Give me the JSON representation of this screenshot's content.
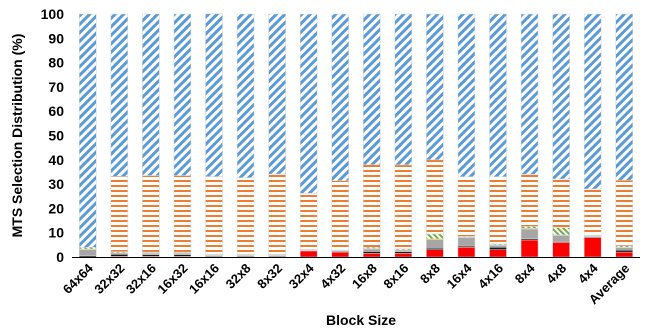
{
  "chart_data": {
    "type": "bar",
    "stacked": true,
    "xlabel": "Block Size",
    "ylabel": "MTS Selection Distribution (%)",
    "ylim": [
      0,
      100
    ],
    "yticks": [
      0,
      10,
      20,
      30,
      40,
      50,
      60,
      70,
      80,
      90,
      100
    ],
    "grid": false,
    "legend": "none",
    "categories": [
      "64x64",
      "32x32",
      "32x16",
      "16x32",
      "16x16",
      "32x8",
      "8x32",
      "32x4",
      "4x32",
      "16x8",
      "8x16",
      "8x8",
      "16x4",
      "4x16",
      "8x4",
      "4x8",
      "4x4",
      "Average"
    ],
    "series": [
      {
        "color": "#ff0000",
        "pattern": "solid",
        "values": [
          0,
          0.3,
          0.3,
          0.3,
          0.2,
          0.2,
          0.2,
          2.5,
          2.0,
          1.5,
          1.5,
          3.0,
          4.0,
          3.0,
          7.0,
          6.0,
          8.0,
          2.0
        ]
      },
      {
        "color": "#1a1a1a",
        "pattern": "solid",
        "values": [
          0.5,
          0.8,
          0.7,
          0.7,
          0.3,
          0.3,
          0.3,
          0.2,
          0.3,
          0.8,
          0.7,
          0.6,
          0.5,
          1.0,
          0.5,
          0.4,
          0.3,
          0.8
        ]
      },
      {
        "color": "#a6a6a6",
        "pattern": "solid",
        "values": [
          2.5,
          0.5,
          0.5,
          0.5,
          0.3,
          0.3,
          0.3,
          0.2,
          0.3,
          1.0,
          0.6,
          3.5,
          3.5,
          0.8,
          4.0,
          2.5,
          0.3,
          1.0
        ]
      },
      {
        "color": "#ffc000",
        "pattern": "solid",
        "values": [
          0.3,
          0.2,
          0.2,
          0.2,
          0.1,
          0.1,
          0.1,
          0.1,
          0.1,
          0.2,
          0.2,
          0.4,
          0.2,
          0.2,
          0.3,
          0.2,
          0.2,
          0.2
        ]
      },
      {
        "color": "#70ad47",
        "pattern": "diag-green",
        "values": [
          0.7,
          0.4,
          0.3,
          0.3,
          0.2,
          0.2,
          0.2,
          0.2,
          0.2,
          0.5,
          0.4,
          2.0,
          0.3,
          0.4,
          0.8,
          3.0,
          0.2,
          0.6
        ]
      },
      {
        "color": "#ed7d31",
        "pattern": "hstripes",
        "values": [
          0,
          31.0,
          31.5,
          31.5,
          32.0,
          31.5,
          33.0,
          23.0,
          28.5,
          34.0,
          34.5,
          30.5,
          24.5,
          27.6,
          21.4,
          20.0,
          19.0,
          27.0
        ]
      },
      {
        "color": "#5b9bd5",
        "pattern": "diagonal",
        "values": [
          96.0,
          66.8,
          66.5,
          66.5,
          67.0,
          67.4,
          65.9,
          73.8,
          68.6,
          62.0,
          62.1,
          60.0,
          67.0,
          67.0,
          66.0,
          67.9,
          72.0,
          68.4
        ]
      }
    ]
  }
}
